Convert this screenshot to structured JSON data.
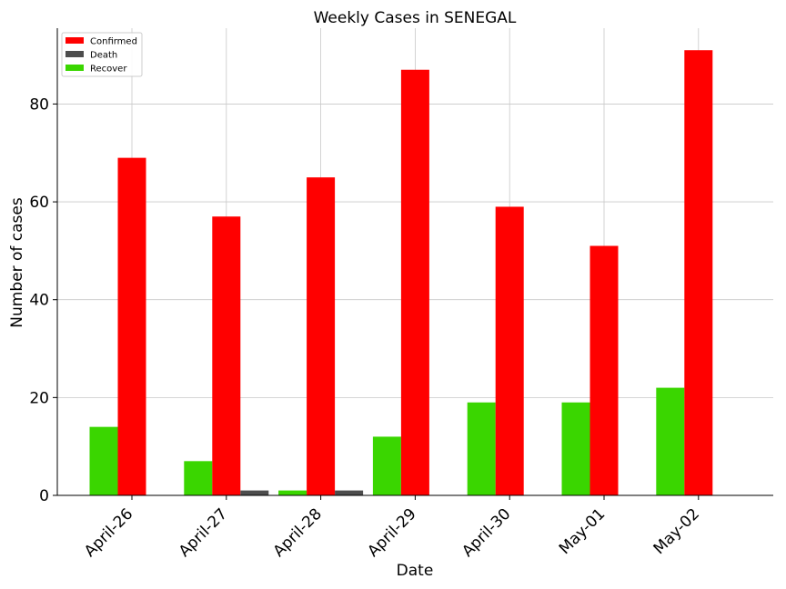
{
  "chart_data": {
    "type": "bar",
    "title": "Weekly Cases in SENEGAL",
    "xlabel": "Date",
    "ylabel": "Number of cases",
    "categories": [
      "April-26",
      "April-27",
      "April-28",
      "April-29",
      "April-30",
      "May-01",
      "May-02"
    ],
    "series": [
      {
        "name": "Recover",
        "color": "#3ad600",
        "values": [
          14,
          7,
          1,
          12,
          19,
          19,
          22
        ]
      },
      {
        "name": "Confirmed",
        "color": "#ff0000",
        "values": [
          69,
          57,
          65,
          87,
          59,
          51,
          91
        ]
      },
      {
        "name": "Death",
        "color": "#4d4d4d",
        "values": [
          0,
          1,
          1,
          0,
          0,
          0,
          0
        ]
      }
    ],
    "legend_order": [
      "Confirmed",
      "Death",
      "Recover"
    ],
    "yticks": [
      0,
      20,
      40,
      60,
      80
    ],
    "ylim": [
      0,
      95.5
    ],
    "grid": true,
    "legend_position": "top-left"
  }
}
